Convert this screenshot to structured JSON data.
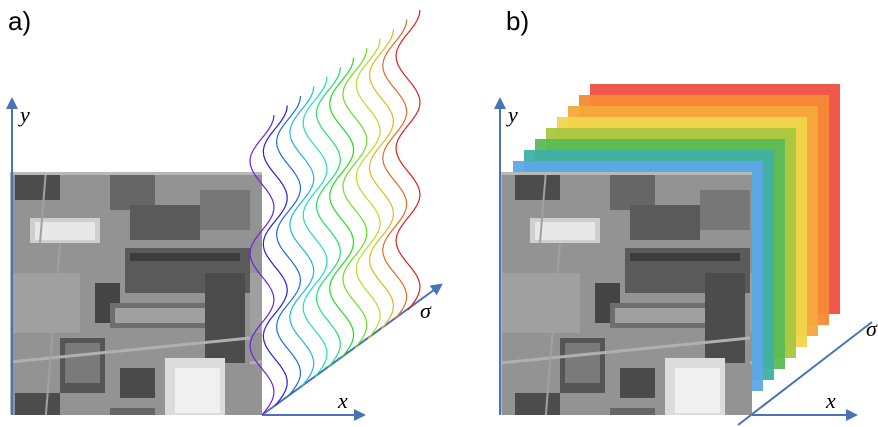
{
  "panels": {
    "a": {
      "label": "a)",
      "y_axis": "y",
      "x_axis": "x",
      "sigma_axis": "σ"
    },
    "b": {
      "label": "b)",
      "y_axis": "y",
      "x_axis": "x",
      "sigma_axis": "σ"
    }
  },
  "colors": {
    "axis": "#4a72b8",
    "scale_stack": [
      "#8d6fe0",
      "#5ea8e6",
      "#3fb0a4",
      "#5dbb55",
      "#a9c63f",
      "#f0d54a",
      "#f6a93c",
      "#f48a35",
      "#ef5040"
    ]
  },
  "icons": {
    "axis_arrow": "arrow-head",
    "aerial_image": "aerial-photo"
  }
}
